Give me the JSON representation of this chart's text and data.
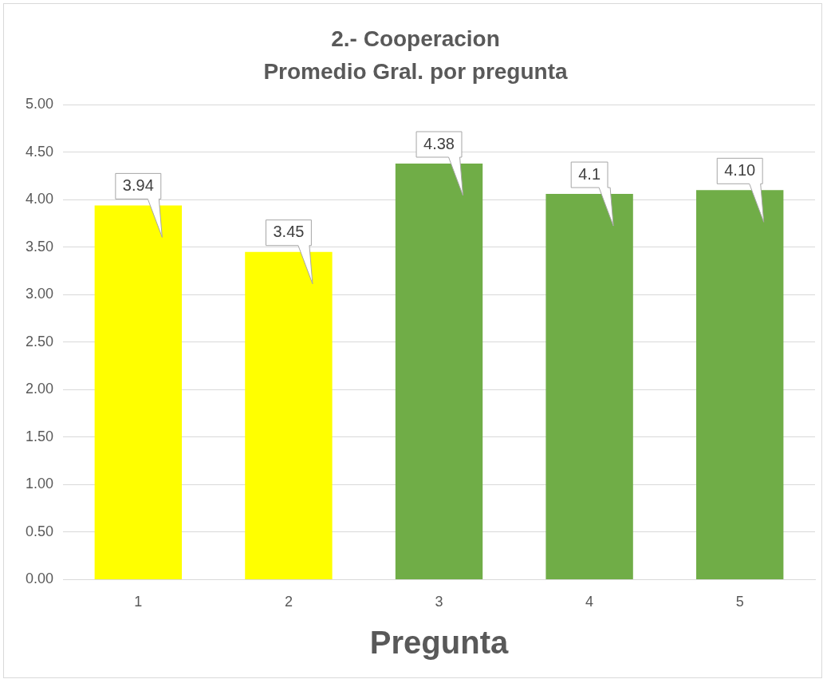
{
  "chart_data": {
    "type": "bar",
    "title": "2.- Cooperacion",
    "subtitle": "Promedio Gral. por pregunta",
    "xlabel": "Pregunta",
    "categories": [
      "1",
      "2",
      "3",
      "4",
      "5"
    ],
    "values": [
      3.94,
      3.45,
      4.38,
      4.06,
      4.1
    ],
    "colors": [
      "#ffff00",
      "#ffff00",
      "#70ad47",
      "#70ad47",
      "#70ad47"
    ],
    "value_labels": [
      "3.94",
      "3.45",
      "4.38",
      "4.1",
      "4.10"
    ],
    "ylim": [
      0,
      5
    ],
    "yticks": [
      {
        "value": 0,
        "label": "0.00"
      },
      {
        "value": 0.5,
        "label": "0.50"
      },
      {
        "value": 1,
        "label": "1.00"
      },
      {
        "value": 1.5,
        "label": "1.50"
      },
      {
        "value": 2,
        "label": "2.00"
      },
      {
        "value": 2.5,
        "label": "2.50"
      },
      {
        "value": 3,
        "label": "3.00"
      },
      {
        "value": 3.5,
        "label": "3.50"
      },
      {
        "value": 4,
        "label": "4.00"
      },
      {
        "value": 4.5,
        "label": "4.50"
      },
      {
        "value": 5,
        "label": "5.00"
      }
    ],
    "grid": "y",
    "legend": false
  }
}
